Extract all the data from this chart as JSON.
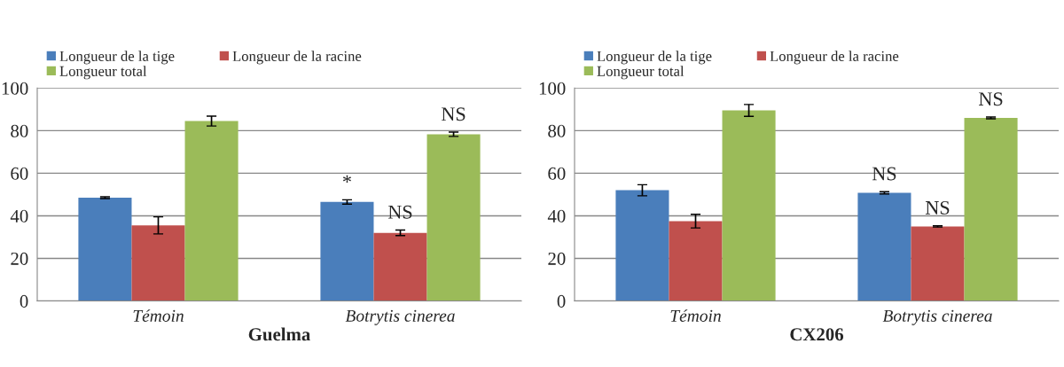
{
  "chart_data": [
    {
      "type": "bar",
      "xlabel": "Guelma",
      "categories": [
        "Témoin",
        "Botrytis cinerea"
      ],
      "ylim": [
        0,
        100
      ],
      "yticks": [
        0,
        20,
        40,
        60,
        80,
        100
      ],
      "grid": "y",
      "legend": "top",
      "series": [
        {
          "name": "Longueur de la tige",
          "color": "#4a7ebb",
          "values": [
            48.5,
            46.5
          ],
          "errors": [
            0.4,
            1
          ]
        },
        {
          "name": "Longueur de la racine",
          "color": "#c0504d",
          "values": [
            35.5,
            32
          ],
          "errors": [
            4,
            1.3
          ]
        },
        {
          "name": "Longueur total",
          "color": "#9bbb59",
          "values": [
            84.5,
            78.3
          ],
          "errors": [
            2.3,
            1
          ]
        }
      ],
      "annotations": [
        "*",
        "NS",
        "NS"
      ]
    },
    {
      "type": "bar",
      "xlabel": "CX206",
      "categories": [
        "Témoin",
        "Botrytis cinerea"
      ],
      "ylim": [
        0,
        100
      ],
      "yticks": [
        0,
        20,
        40,
        60,
        80,
        100
      ],
      "grid": "y",
      "legend": "top",
      "series": [
        {
          "name": "Longueur de la tige",
          "color": "#4a7ebb",
          "values": [
            52,
            50.8
          ],
          "errors": [
            2.6,
            0.5
          ]
        },
        {
          "name": "Longueur de la racine",
          "color": "#c0504d",
          "values": [
            37.5,
            35
          ],
          "errors": [
            3.2,
            0.3
          ]
        },
        {
          "name": "Longueur total",
          "color": "#9bbb59",
          "values": [
            89.5,
            86
          ],
          "errors": [
            2.8,
            0.4
          ]
        }
      ],
      "annotations": [
        "NS",
        "NS",
        "NS"
      ]
    }
  ]
}
